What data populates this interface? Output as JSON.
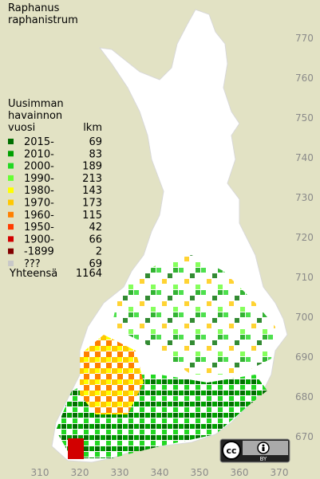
{
  "title": [
    "Raphanus",
    "raphanistrum"
  ],
  "legend": {
    "header": [
      "Uusimman",
      "havainnon",
      "vuosi"
    ],
    "count_header": "lkm",
    "rows": [
      {
        "label": "2015-",
        "count": 69,
        "color": "#006e00"
      },
      {
        "label": "2010-",
        "count": 83,
        "color": "#00a000"
      },
      {
        "label": "2000-",
        "count": 189,
        "color": "#22d822"
      },
      {
        "label": "1990-",
        "count": 213,
        "color": "#66ff33"
      },
      {
        "label": "1980-",
        "count": 143,
        "color": "#ffff00"
      },
      {
        "label": "1970-",
        "count": 173,
        "color": "#ffc800"
      },
      {
        "label": "1960-",
        "count": 115,
        "color": "#ff8000"
      },
      {
        "label": "1950-",
        "count": 42,
        "color": "#ff3c00"
      },
      {
        "label": "1900-",
        "count": 66,
        "color": "#d20000"
      },
      {
        "label": "-1899",
        "count": 2,
        "color": "#820000"
      },
      {
        "label": "???",
        "count": 69,
        "color": "#c8c8c8"
      }
    ],
    "total_label": "Yhteensä",
    "total": 1164
  },
  "grid": {
    "yticks": [
      770,
      760,
      750,
      740,
      730,
      720,
      710,
      700,
      690,
      680,
      670
    ],
    "xticks": [
      310,
      320,
      330,
      340,
      350,
      360,
      370
    ]
  },
  "license": "BY"
}
